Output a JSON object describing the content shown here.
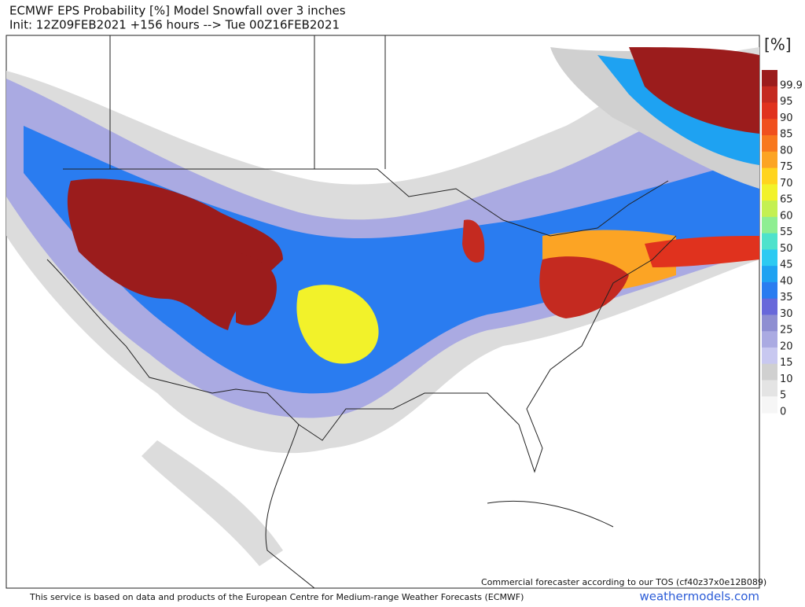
{
  "header": {
    "title": "ECMWF EPS Probability [%] Model Snowfall over 3 inches",
    "subtitle": "Init: 12Z09FEB2021 +156 hours --> Tue 00Z16FEB2021"
  },
  "legend": {
    "unit": "[%]",
    "levels": [
      {
        "label": "99.9",
        "color": "#9b1c1c"
      },
      {
        "label": "95",
        "color": "#c42a20"
      },
      {
        "label": "90",
        "color": "#e0321e"
      },
      {
        "label": "85",
        "color": "#f0501e"
      },
      {
        "label": "80",
        "color": "#f8781e"
      },
      {
        "label": "75",
        "color": "#fca424"
      },
      {
        "label": "70",
        "color": "#ffd41e"
      },
      {
        "label": "65",
        "color": "#f2f22a"
      },
      {
        "label": "60",
        "color": "#c4f052"
      },
      {
        "label": "55",
        "color": "#8eee92"
      },
      {
        "label": "50",
        "color": "#4ee2cc"
      },
      {
        "label": "45",
        "color": "#2ccaf2"
      },
      {
        "label": "40",
        "color": "#1ea2f2"
      },
      {
        "label": "35",
        "color": "#2a7cf0"
      },
      {
        "label": "30",
        "color": "#6868da"
      },
      {
        "label": "25",
        "color": "#8e8ed2"
      },
      {
        "label": "20",
        "color": "#aaaae2"
      },
      {
        "label": "15",
        "color": "#c8c8f0"
      },
      {
        "label": "10",
        "color": "#d0d0d0"
      },
      {
        "label": "5",
        "color": "#e4e4e4"
      },
      {
        "label": "0",
        "color": "#f6f6f6"
      }
    ]
  },
  "map": {
    "note": "Commercial forecaster according to our TOS (cf40z37x0e12B089)"
  },
  "footer": {
    "disclaimer": "This service is based on data and products of the European Centre for Medium-range Weather Forecasts (ECMWF)",
    "brand": "weathermodels.com"
  }
}
